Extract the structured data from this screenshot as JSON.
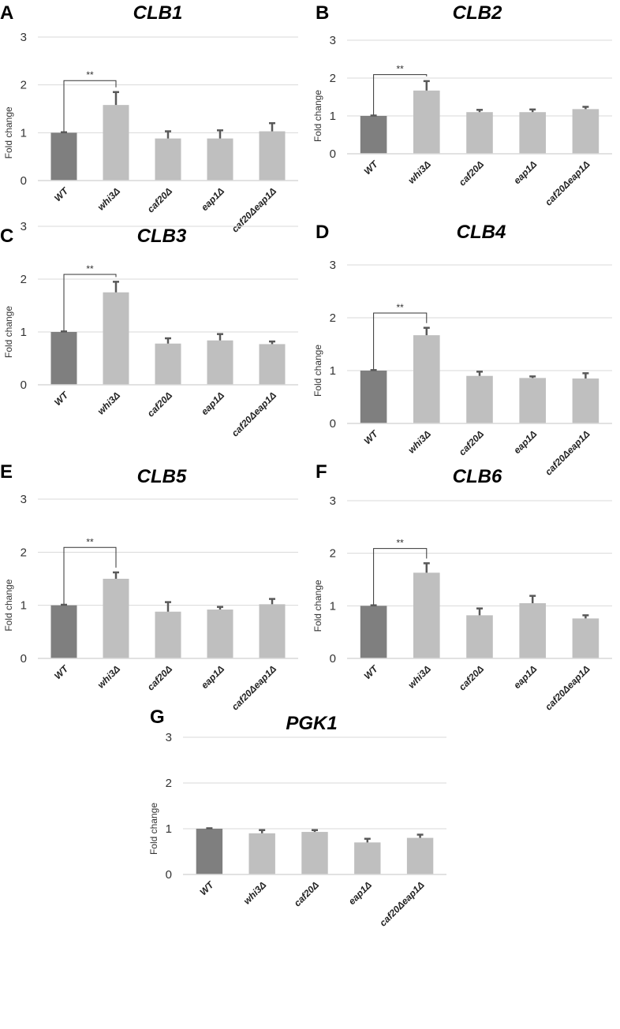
{
  "chart_data": [
    {
      "panel": "A",
      "type": "bar",
      "title": "CLB1",
      "ylabel": "Fold change",
      "ylim": [
        0,
        3
      ],
      "yticks": [
        "0",
        "1",
        "2",
        "3"
      ],
      "categories": [
        "WT",
        "whi3Δ",
        "caf20Δ",
        "eap1Δ",
        "caf20Δeap1Δ"
      ],
      "values": [
        1.0,
        1.58,
        0.88,
        0.88,
        1.03
      ],
      "errors": [
        0.01,
        0.27,
        0.15,
        0.17,
        0.17
      ],
      "significance": {
        "between": [
          0,
          1
        ],
        "label": "**"
      }
    },
    {
      "panel": "B",
      "type": "bar",
      "title": "CLB2",
      "ylabel": "Fold change",
      "ylim": [
        0,
        3
      ],
      "yticks": [
        "0",
        "1",
        "2",
        "3"
      ],
      "categories": [
        "WT",
        "whi3Δ",
        "caf20Δ",
        "eap1Δ",
        "caf20Δeap1Δ"
      ],
      "values": [
        1.0,
        1.67,
        1.1,
        1.1,
        1.18
      ],
      "errors": [
        0.01,
        0.25,
        0.06,
        0.07,
        0.06
      ],
      "significance": {
        "between": [
          0,
          1
        ],
        "label": "**"
      }
    },
    {
      "panel": "C",
      "type": "bar",
      "title": "CLB3",
      "ylabel": "Fold change",
      "ylim": [
        0,
        3
      ],
      "yticks": [
        "0",
        "1",
        "2",
        "3"
      ],
      "categories": [
        "WT",
        "whi3Δ",
        "caf20Δ",
        "eap1Δ",
        "caf20Δeap1Δ"
      ],
      "values": [
        1.0,
        1.75,
        0.78,
        0.84,
        0.77
      ],
      "errors": [
        0.01,
        0.2,
        0.1,
        0.12,
        0.05
      ],
      "significance": {
        "between": [
          0,
          1
        ],
        "label": "**"
      }
    },
    {
      "panel": "D",
      "type": "bar",
      "title": "CLB4",
      "ylabel": "Fold change",
      "ylim": [
        0,
        3
      ],
      "yticks": [
        "0",
        "1",
        "2",
        "3"
      ],
      "categories": [
        "WT",
        "whi3Δ",
        "caf20Δ",
        "eap1Δ",
        "caf20Δeap1Δ"
      ],
      "values": [
        1.0,
        1.67,
        0.9,
        0.86,
        0.85
      ],
      "errors": [
        0.01,
        0.14,
        0.08,
        0.03,
        0.1
      ],
      "significance": {
        "between": [
          0,
          1
        ],
        "label": "**"
      }
    },
    {
      "panel": "E",
      "type": "bar",
      "title": "CLB5",
      "ylabel": "Fold change",
      "ylim": [
        0,
        3
      ],
      "yticks": [
        "0",
        "1",
        "2",
        "3"
      ],
      "categories": [
        "WT",
        "whi3Δ",
        "caf20Δ",
        "eap1Δ",
        "caf20Δeap1Δ"
      ],
      "values": [
        1.0,
        1.5,
        0.88,
        0.92,
        1.02
      ],
      "errors": [
        0.01,
        0.12,
        0.18,
        0.05,
        0.1
      ],
      "significance": {
        "between": [
          0,
          1
        ],
        "label": "**"
      }
    },
    {
      "panel": "F",
      "type": "bar",
      "title": "CLB6",
      "ylabel": "Fold change",
      "ylim": [
        0,
        3
      ],
      "yticks": [
        "0",
        "1",
        "2",
        "3"
      ],
      "categories": [
        "WT",
        "whi3Δ",
        "caf20Δ",
        "eap1Δ",
        "caf20Δeap1Δ"
      ],
      "values": [
        1.0,
        1.63,
        0.82,
        1.05,
        0.76
      ],
      "errors": [
        0.01,
        0.18,
        0.13,
        0.14,
        0.06
      ],
      "significance": {
        "between": [
          0,
          1
        ],
        "label": "**"
      }
    },
    {
      "panel": "G",
      "type": "bar",
      "title": "PGK1",
      "ylabel": "Fold change",
      "ylim": [
        0,
        3
      ],
      "yticks": [
        "0",
        "1",
        "2",
        "3"
      ],
      "categories": [
        "WT",
        "whi3Δ",
        "caf20Δ",
        "eap1Δ",
        "caf20Δeap1Δ"
      ],
      "values": [
        1.0,
        0.9,
        0.93,
        0.7,
        0.8
      ],
      "errors": [
        0.01,
        0.07,
        0.04,
        0.08,
        0.07
      ],
      "significance": null
    }
  ],
  "colors": {
    "wt_bar": "#7f7f7f",
    "mutant_bar": "#bfbfbf",
    "error_bar": "#595959",
    "grid": "#d9d9d9"
  }
}
